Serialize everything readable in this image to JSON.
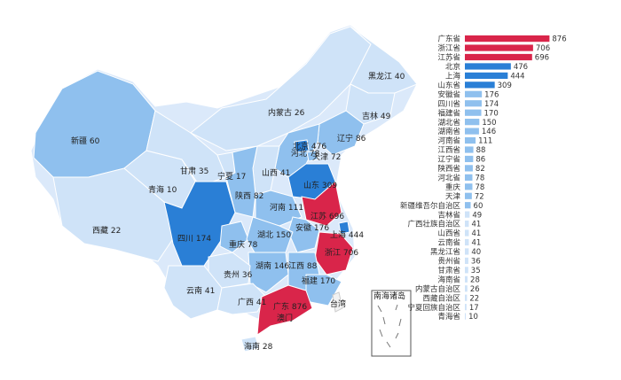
{
  "chart_data": {
    "type": "bar",
    "orientation": "horizontal",
    "sort": "descending",
    "title": "",
    "xlabel": "",
    "ylabel": "",
    "xlim": [
      0,
      900
    ],
    "grid": false,
    "legend": "none",
    "colors": {
      "high": "#d9254a",
      "mid": "#2a7fd6",
      "low": "#8fc0ee",
      "lowest": "#cfe3f8"
    },
    "categories": [
      "广东省",
      "浙江省",
      "江苏省",
      "北京",
      "上海",
      "山东省",
      "安徽省",
      "四川省",
      "福建省",
      "湖北省",
      "湖南省",
      "河南省",
      "江西省",
      "辽宁省",
      "陕西省",
      "河北省",
      "重庆",
      "天津",
      "新疆维吾尔自治区",
      "吉林省",
      "广西壮族自治区",
      "山西省",
      "云南省",
      "黑龙江省",
      "贵州省",
      "甘肃省",
      "海南省",
      "内蒙古自治区",
      "西藏自治区",
      "宁夏回族自治区",
      "青海省"
    ],
    "values": [
      876,
      706,
      696,
      476,
      444,
      309,
      176,
      174,
      170,
      150,
      146,
      111,
      88,
      86,
      82,
      78,
      78,
      72,
      60,
      49,
      41,
      41,
      41,
      40,
      36,
      35,
      28,
      26,
      22,
      17,
      10
    ]
  },
  "map": {
    "inset_label": "南海诸岛",
    "taiwan_label": "台湾",
    "regions": [
      {
        "name": "新疆",
        "value": 60
      },
      {
        "name": "西藏",
        "value": 22
      },
      {
        "name": "青海",
        "value": 10
      },
      {
        "name": "甘肃",
        "value": 35
      },
      {
        "name": "内蒙古",
        "value": 26
      },
      {
        "name": "黑龙江",
        "value": 40
      },
      {
        "name": "吉林",
        "value": 49
      },
      {
        "name": "辽宁",
        "value": 86
      },
      {
        "name": "北京",
        "value": 476
      },
      {
        "name": "天津",
        "value": 72
      },
      {
        "name": "河北",
        "value": 78
      },
      {
        "name": "山西",
        "value": 41
      },
      {
        "name": "宁夏",
        "value": 17
      },
      {
        "name": "陕西",
        "value": 82
      },
      {
        "name": "山东",
        "value": 309
      },
      {
        "name": "河南",
        "value": 111
      },
      {
        "name": "江苏",
        "value": 696
      },
      {
        "name": "安徽",
        "value": 176
      },
      {
        "name": "上海",
        "value": 444
      },
      {
        "name": "四川",
        "value": 174
      },
      {
        "name": "重庆",
        "value": 78
      },
      {
        "name": "湖北",
        "value": 150
      },
      {
        "name": "浙江",
        "value": 706
      },
      {
        "name": "湖南",
        "value": 146
      },
      {
        "name": "江西",
        "value": 88
      },
      {
        "name": "贵州",
        "value": 36
      },
      {
        "name": "福建",
        "value": 170
      },
      {
        "name": "云南",
        "value": 41
      },
      {
        "name": "广西",
        "value": 41
      },
      {
        "name": "广东",
        "value": 876
      },
      {
        "name": "澳门",
        "value": null
      },
      {
        "name": "海南",
        "value": 28
      }
    ]
  }
}
